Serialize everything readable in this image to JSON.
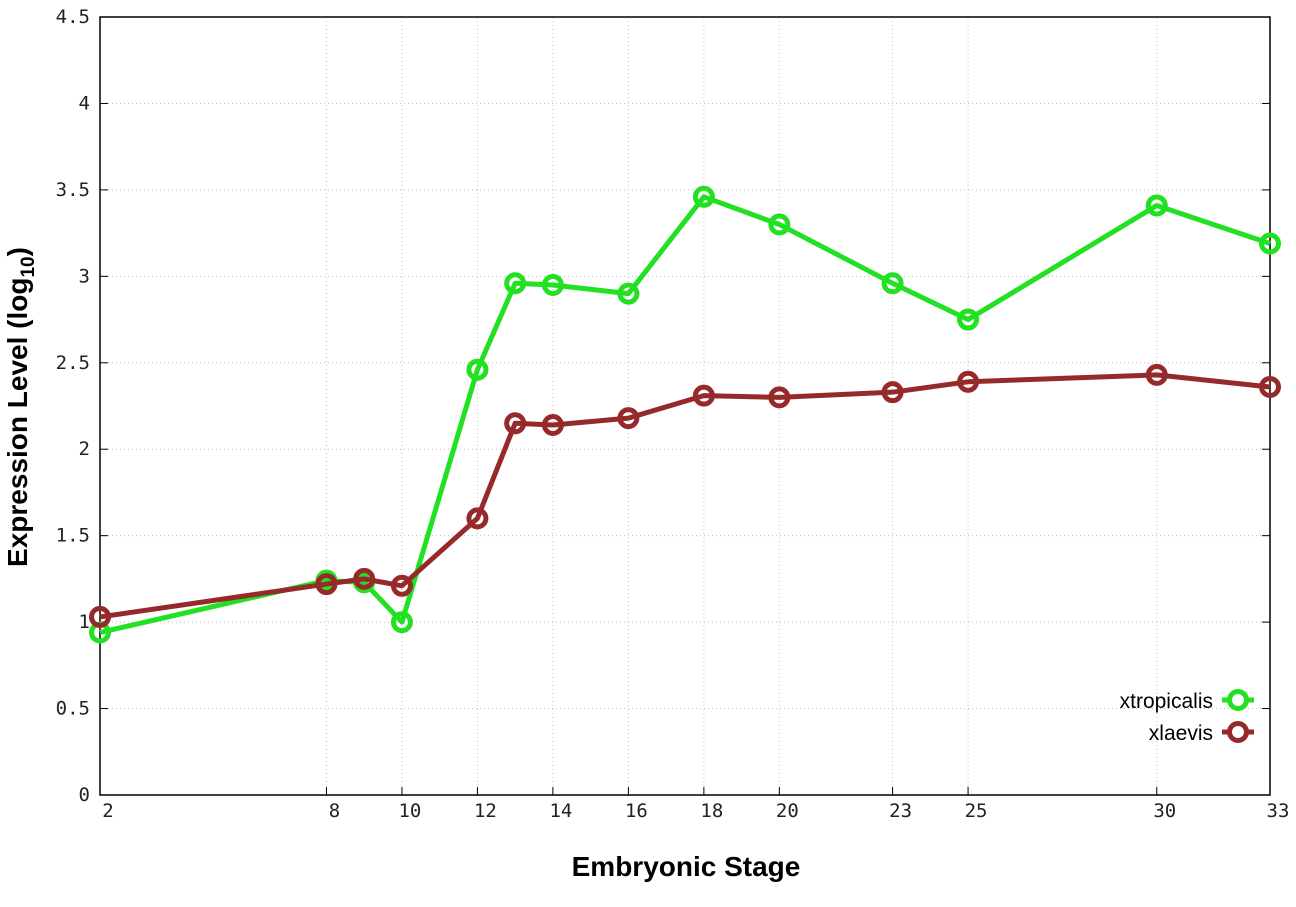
{
  "chart_data": {
    "type": "line",
    "xlabel": "Embryonic Stage",
    "ylabel": "Expression Level (log",
    "ylabel_sub": "10",
    "ylabel_close": ")",
    "ylim": [
      0,
      4.5
    ],
    "yticks": [
      "0",
      "0.5",
      "1",
      "1.5",
      "2",
      "2.5",
      "3",
      "3.5",
      "4",
      "4.5"
    ],
    "x": [
      2,
      8,
      9,
      10,
      12,
      13,
      14,
      16,
      18,
      20,
      23,
      25,
      30,
      33
    ],
    "xticks": [
      "2",
      "8",
      "10",
      "12",
      "14",
      "16",
      "18",
      "20",
      "23",
      "25",
      "30",
      "33"
    ],
    "grid": true,
    "legend_position": "bottom-right",
    "series": [
      {
        "name": "xtropicalis",
        "color": "#22e022",
        "values": [
          0.94,
          1.24,
          1.23,
          1.0,
          2.46,
          2.96,
          2.95,
          2.9,
          3.46,
          3.3,
          2.96,
          2.75,
          3.41,
          3.19
        ]
      },
      {
        "name": "xlaevis",
        "color": "#962a2a",
        "values": [
          1.03,
          1.22,
          1.25,
          1.21,
          1.6,
          2.15,
          2.14,
          2.18,
          2.31,
          2.3,
          2.33,
          2.39,
          2.43,
          2.36
        ]
      }
    ]
  }
}
